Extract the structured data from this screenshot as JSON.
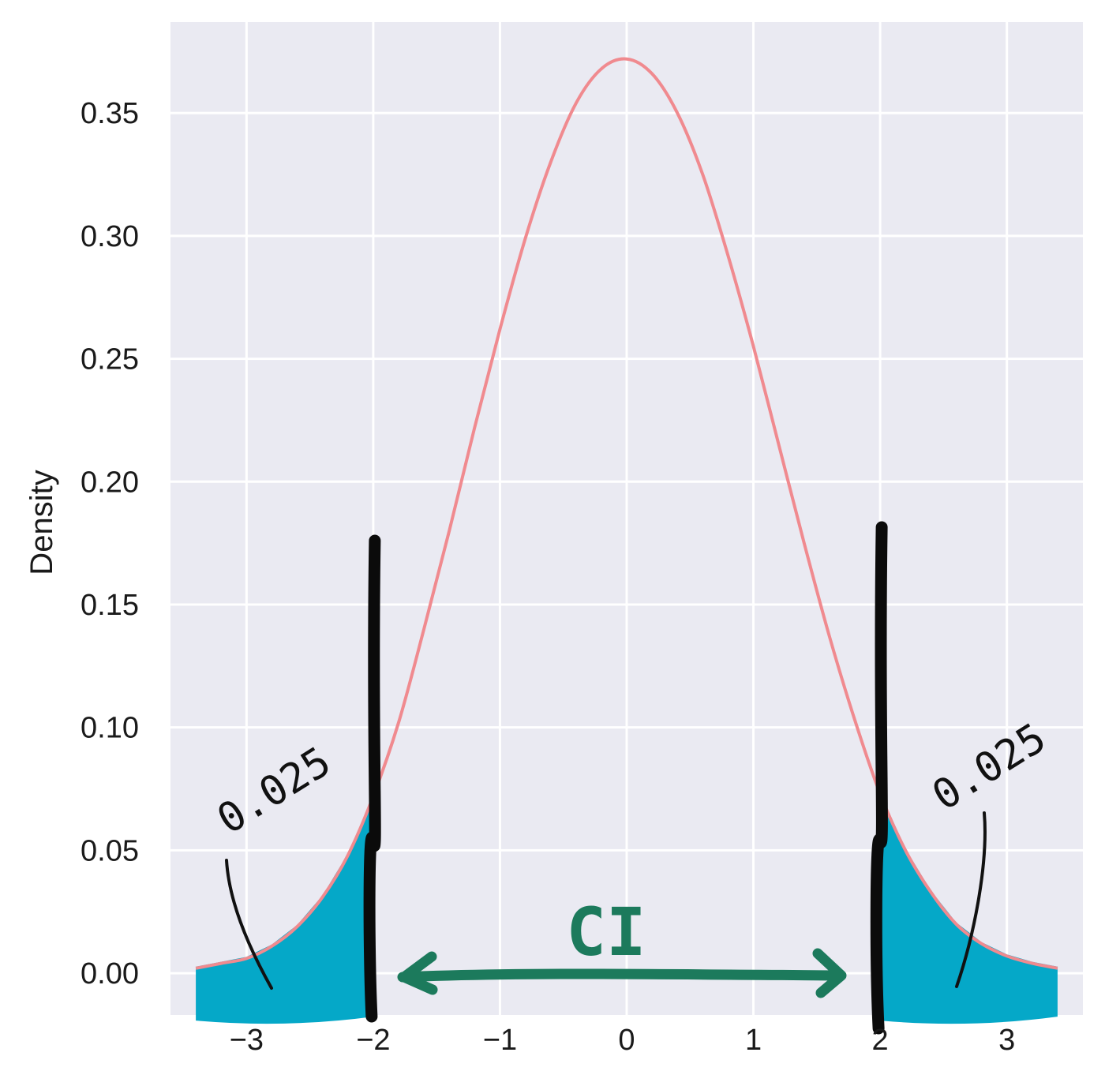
{
  "chart_data": {
    "type": "line",
    "title": "",
    "xlabel": "",
    "ylabel": "Density",
    "xlim": [
      -3.6,
      3.6
    ],
    "ylim": [
      -0.017,
      0.387
    ],
    "x_ticks": [
      "−3",
      "−2",
      "−1",
      "0",
      "1",
      "2",
      "3"
    ],
    "x_tick_values": [
      -3,
      -2,
      -1,
      0,
      1,
      2,
      3
    ],
    "y_ticks": [
      "0.00",
      "0.05",
      "0.10",
      "0.15",
      "0.20",
      "0.25",
      "0.30",
      "0.35"
    ],
    "y_tick_values": [
      0,
      0.05,
      0.1,
      0.15,
      0.2,
      0.25,
      0.3,
      0.35
    ],
    "grid": true,
    "background": "#eaeaf2",
    "curve_color": "#f08a8f",
    "series": [
      {
        "x": [
          -3.4,
          -3.2,
          -3.0,
          -2.8,
          -2.6,
          -2.4,
          -2.2,
          -2.0,
          -1.8,
          -1.6,
          -1.4,
          -1.2,
          -1.0,
          -0.8,
          -0.6,
          -0.4,
          -0.2,
          0.0,
          0.2,
          0.4,
          0.6,
          0.8,
          1.0,
          1.2,
          1.4,
          1.6,
          1.8,
          2.0,
          2.2,
          2.4,
          2.6,
          2.8,
          3.0,
          3.2,
          3.4
        ],
        "y": [
          0.002,
          0.004,
          0.006,
          0.011,
          0.019,
          0.031,
          0.048,
          0.072,
          0.102,
          0.14,
          0.18,
          0.222,
          0.262,
          0.299,
          0.33,
          0.354,
          0.368,
          0.372,
          0.366,
          0.35,
          0.325,
          0.292,
          0.255,
          0.215,
          0.175,
          0.137,
          0.103,
          0.073,
          0.05,
          0.033,
          0.02,
          0.012,
          0.007,
          0.004,
          0.002
        ]
      }
    ],
    "annotations": {
      "left_tail_label": "0.025",
      "right_tail_label": "0.025",
      "interval_label": "CI",
      "critical_values": [
        -2,
        2
      ],
      "tail_fill_color": "#05a8c8",
      "arrow_color": "#1c7a5c",
      "bound_line_color": "#0b0b0b"
    }
  }
}
